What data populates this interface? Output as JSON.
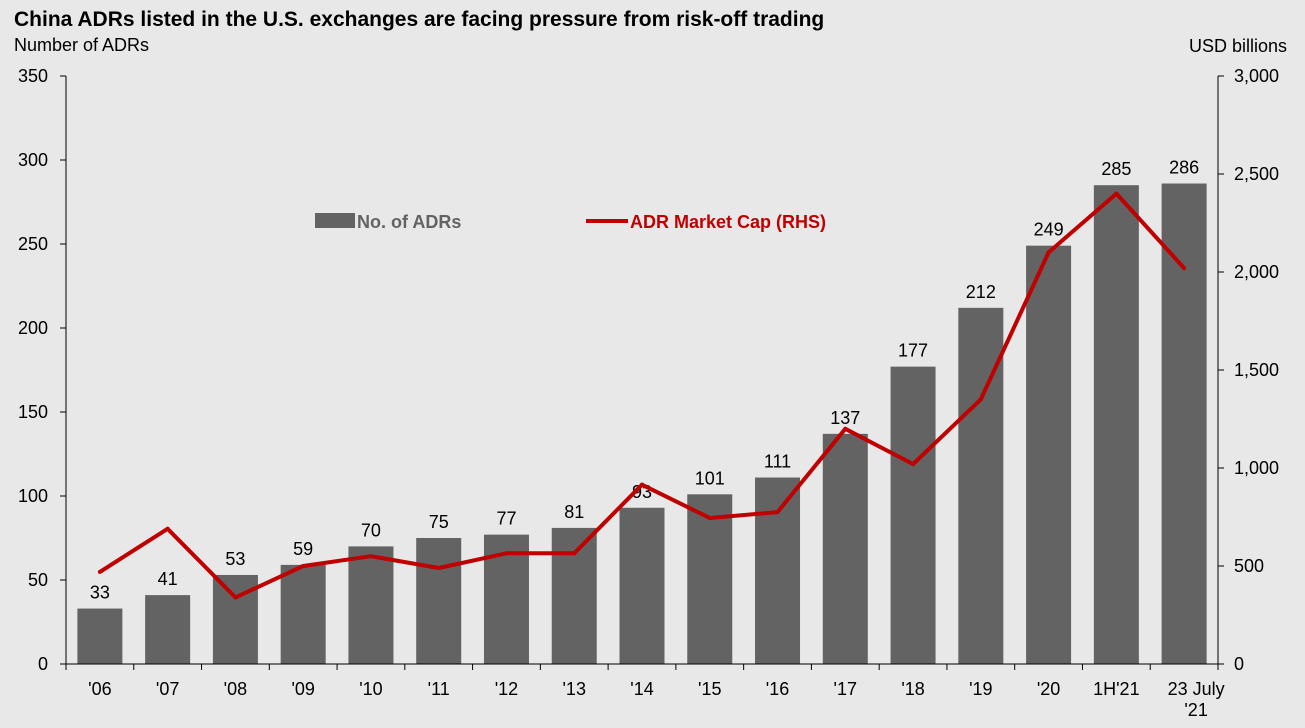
{
  "chart_data": {
    "type": "bar",
    "title": "China ADRs listed in the U.S. exchanges are facing pressure from risk-off trading",
    "ylabel_left": "Number of ADRs",
    "ylabel_right": "USD billions",
    "categories": [
      "'06",
      "'07",
      "'08",
      "'09",
      "'10",
      "'11",
      "'12",
      "'13",
      "'14",
      "'15",
      "'16",
      "'17",
      "'18",
      "'19",
      "'20",
      "1H'21",
      "23 July '21"
    ],
    "ylim_left": [
      0,
      350
    ],
    "yticks_left": [
      0,
      50,
      100,
      150,
      200,
      250,
      300,
      350
    ],
    "ylim_right": [
      0,
      3000
    ],
    "yticks_right": [
      "0",
      "500",
      "1,000",
      "1,500",
      "2,000",
      "2,500",
      "3,000"
    ],
    "series": [
      {
        "name": "No. of ADRs",
        "type": "bar",
        "axis": "left",
        "color": "#636363",
        "values": [
          33,
          41,
          53,
          59,
          70,
          75,
          77,
          81,
          93,
          101,
          111,
          137,
          177,
          212,
          249,
          285,
          286
        ]
      },
      {
        "name": "ADR Market Cap (RHS)",
        "type": "line",
        "axis": "right",
        "color": "#c00000",
        "values": [
          470,
          690,
          340,
          500,
          550,
          490,
          565,
          565,
          915,
          745,
          775,
          1200,
          1020,
          1350,
          2100,
          2400,
          2020
        ]
      }
    ],
    "grid": false,
    "legend_position": "upper-left inside plot"
  }
}
